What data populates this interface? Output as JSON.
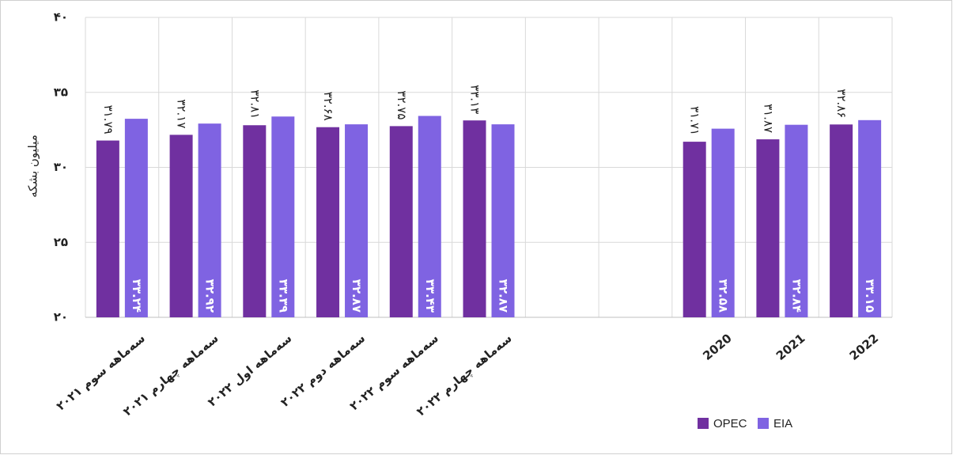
{
  "chart_data": {
    "type": "bar",
    "y_label": "میلیون بشکه",
    "categories": [
      "سه‌ماهه سوم ۲۰۲۱",
      "سه‌ماهه چهارم ۲۰۲۱",
      "سه‌ماهه اول ۲۰۲۲",
      "سه‌ماهه دوم ۲۰۲۲",
      "سه‌ماهه سوم ۲۰۲۲",
      "سه‌ماهه چهارم ۲۰۲۲",
      null,
      null,
      "2020",
      "2021",
      "2022"
    ],
    "series": [
      {
        "name": "OPEC",
        "color": "#7030a0",
        "values": [
          31.79,
          32.17,
          32.81,
          32.68,
          32.75,
          33.13,
          null,
          null,
          31.71,
          31.87,
          32.86
        ],
        "value_labels": [
          "۳۱.۷۹",
          "۳۲.۱۷",
          "۳۲.۸۱",
          "۳۲.۶۸",
          "۳۲.۷۵",
          "۳۳.۱۳",
          null,
          null,
          "۳۱.۷۱",
          "۳۱.۸۷",
          "۳۲.۸۶"
        ]
      },
      {
        "name": "EIA",
        "color": "#7f63e2",
        "values": [
          33.24,
          32.92,
          33.39,
          32.87,
          33.43,
          32.87,
          null,
          null,
          32.58,
          32.84,
          33.15
        ],
        "value_labels": [
          "۳۳.۲۴",
          "۳۲.۹۲",
          "۳۳.۳۹",
          "۳۲.۸۷",
          "۳۳.۴۳",
          "۳۲.۸۷",
          null,
          null,
          "۳۲.۵۸",
          "۳۲.۸۴",
          "۳۳.۱۵"
        ]
      }
    ],
    "ylim": [
      20,
      40
    ],
    "yticks": [
      {
        "value": 20,
        "label": "۲۰"
      },
      {
        "value": 25,
        "label": "۲۵"
      },
      {
        "value": 30,
        "label": "۳۰"
      },
      {
        "value": 35,
        "label": "۳۵"
      },
      {
        "value": 40,
        "label": "۴۰"
      }
    ],
    "grid": true,
    "legend": "bottom-right"
  }
}
